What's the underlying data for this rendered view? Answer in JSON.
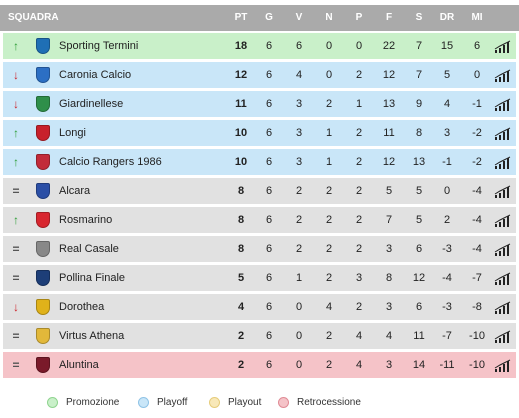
{
  "header": {
    "squadra": "SQUADRA",
    "pt": "PT",
    "g": "G",
    "v": "V",
    "n": "N",
    "p": "P",
    "f": "F",
    "s": "S",
    "dr": "DR",
    "mi": "MI"
  },
  "colors": {
    "header_bg": "#aaaaaa",
    "promozione": "#c9f0c9",
    "playoff": "#c9e6f8",
    "neutral": "#e1e1e1",
    "retrocessione": "#f5c3c8",
    "arrow_up": "#2e9e37",
    "arrow_down": "#cc2229",
    "equal": "#555555"
  },
  "teams": [
    {
      "trend": "up",
      "zone": "promozione",
      "crest_color": "#1f6fb5",
      "name": "Sporting Termini",
      "pt": "18",
      "g": "6",
      "v": "6",
      "n": "0",
      "p": "0",
      "f": "22",
      "s": "7",
      "dr": "15",
      "mi": "6"
    },
    {
      "trend": "down",
      "zone": "playoff",
      "crest_color": "#2c6fc4",
      "name": "Caronia Calcio",
      "pt": "12",
      "g": "6",
      "v": "4",
      "n": "0",
      "p": "2",
      "f": "12",
      "s": "7",
      "dr": "5",
      "mi": "0"
    },
    {
      "trend": "down",
      "zone": "playoff",
      "crest_color": "#2f8f4a",
      "name": "Giardinellese",
      "pt": "11",
      "g": "6",
      "v": "3",
      "n": "2",
      "p": "1",
      "f": "13",
      "s": "9",
      "dr": "4",
      "mi": "-1"
    },
    {
      "trend": "up",
      "zone": "playoff",
      "crest_color": "#c8202b",
      "name": "Longi",
      "pt": "10",
      "g": "6",
      "v": "3",
      "n": "1",
      "p": "2",
      "f": "11",
      "s": "8",
      "dr": "3",
      "mi": "-2"
    },
    {
      "trend": "up",
      "zone": "playoff",
      "crest_color": "#c22b3a",
      "name": "Calcio Rangers 1986",
      "pt": "10",
      "g": "6",
      "v": "3",
      "n": "1",
      "p": "2",
      "f": "12",
      "s": "13",
      "dr": "-1",
      "mi": "-2"
    },
    {
      "trend": "equal",
      "zone": "neutral",
      "crest_color": "#2b4fa6",
      "name": "Alcara",
      "pt": "8",
      "g": "6",
      "v": "2",
      "n": "2",
      "p": "2",
      "f": "5",
      "s": "5",
      "dr": "0",
      "mi": "-4"
    },
    {
      "trend": "up",
      "zone": "neutral",
      "crest_color": "#d8262f",
      "name": "Rosmarino",
      "pt": "8",
      "g": "6",
      "v": "2",
      "n": "2",
      "p": "2",
      "f": "7",
      "s": "5",
      "dr": "2",
      "mi": "-4"
    },
    {
      "trend": "equal",
      "zone": "neutral",
      "crest_color": "#888888",
      "name": "Real Casale",
      "pt": "8",
      "g": "6",
      "v": "2",
      "n": "2",
      "p": "2",
      "f": "3",
      "s": "6",
      "dr": "-3",
      "mi": "-4"
    },
    {
      "trend": "equal",
      "zone": "neutral",
      "crest_color": "#1d3e78",
      "name": "Pollina Finale",
      "pt": "5",
      "g": "6",
      "v": "1",
      "n": "2",
      "p": "3",
      "f": "8",
      "s": "12",
      "dr": "-4",
      "mi": "-7"
    },
    {
      "trend": "down",
      "zone": "neutral",
      "crest_color": "#e0b21a",
      "name": "Dorothea",
      "pt": "4",
      "g": "6",
      "v": "0",
      "n": "4",
      "p": "2",
      "f": "3",
      "s": "6",
      "dr": "-3",
      "mi": "-8"
    },
    {
      "trend": "equal",
      "zone": "neutral",
      "crest_color": "#e2b83a",
      "name": "Virtus Athena",
      "pt": "2",
      "g": "6",
      "v": "0",
      "n": "2",
      "p": "4",
      "f": "4",
      "s": "11",
      "dr": "-7",
      "mi": "-10"
    },
    {
      "trend": "equal",
      "zone": "retrocessione",
      "crest_color": "#7a1a2a",
      "name": "Aluntina",
      "pt": "2",
      "g": "6",
      "v": "0",
      "n": "2",
      "p": "4",
      "f": "3",
      "s": "14",
      "dr": "-11",
      "mi": "-10"
    }
  ],
  "legend": [
    {
      "label": "Promozione",
      "color": "#c9f0c9",
      "border": "#8fd48f"
    },
    {
      "label": "Playoff",
      "color": "#c9e6f8",
      "border": "#8fc3e6"
    },
    {
      "label": "Playout",
      "color": "#f8e8b8",
      "border": "#e6cc7a"
    },
    {
      "label": "Retrocessione",
      "color": "#f5c3c8",
      "border": "#e08b95"
    }
  ],
  "icons": {
    "arrow_up": "arrow-up-icon",
    "arrow_down": "arrow-down-icon",
    "equal": "equal-icon",
    "trend": "trend-chart-icon",
    "crest": "team-crest-icon"
  }
}
